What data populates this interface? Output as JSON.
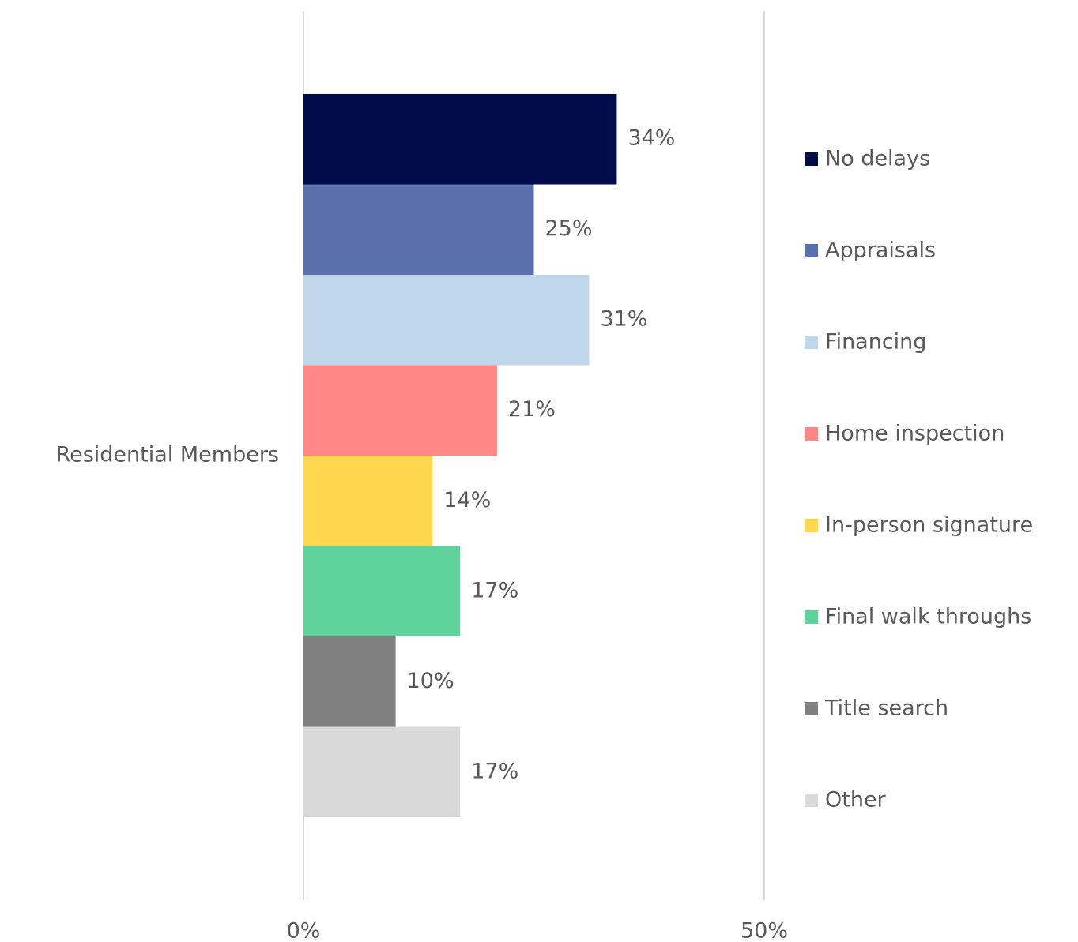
{
  "chart_data": {
    "type": "bar",
    "orientation": "horizontal",
    "categories": [
      "Residential Members"
    ],
    "series": [
      {
        "name": "No delays",
        "color": "#020c4b",
        "values": [
          34
        ],
        "value_labels": [
          "34%"
        ]
      },
      {
        "name": "Appraisals",
        "color": "#5b6fac",
        "values": [
          25
        ],
        "value_labels": [
          "25%"
        ]
      },
      {
        "name": "Financing",
        "color": "#c0d7eb",
        "values": [
          31
        ],
        "value_labels": [
          "31%"
        ]
      },
      {
        "name": "Home inspection",
        "color": "#ff8785",
        "values": [
          21
        ],
        "value_labels": [
          "21%"
        ]
      },
      {
        "name": "In-person signature",
        "color": "#ffd84f",
        "values": [
          14
        ],
        "value_labels": [
          "14%"
        ]
      },
      {
        "name": "Final walk throughs",
        "color": "#5fd39b",
        "values": [
          17
        ],
        "value_labels": [
          "17%"
        ]
      },
      {
        "name": "Title search",
        "color": "#808080",
        "values": [
          10
        ],
        "value_labels": [
          "10%"
        ]
      },
      {
        "name": "Other",
        "color": "#d9d9d9",
        "values": [
          17
        ],
        "value_labels": [
          "17%"
        ]
      }
    ],
    "xlim": [
      0,
      50
    ],
    "xticks": [
      {
        "value": 0,
        "label": "0%"
      },
      {
        "value": 50,
        "label": "50%"
      }
    ],
    "grid": true,
    "legend": "right"
  }
}
